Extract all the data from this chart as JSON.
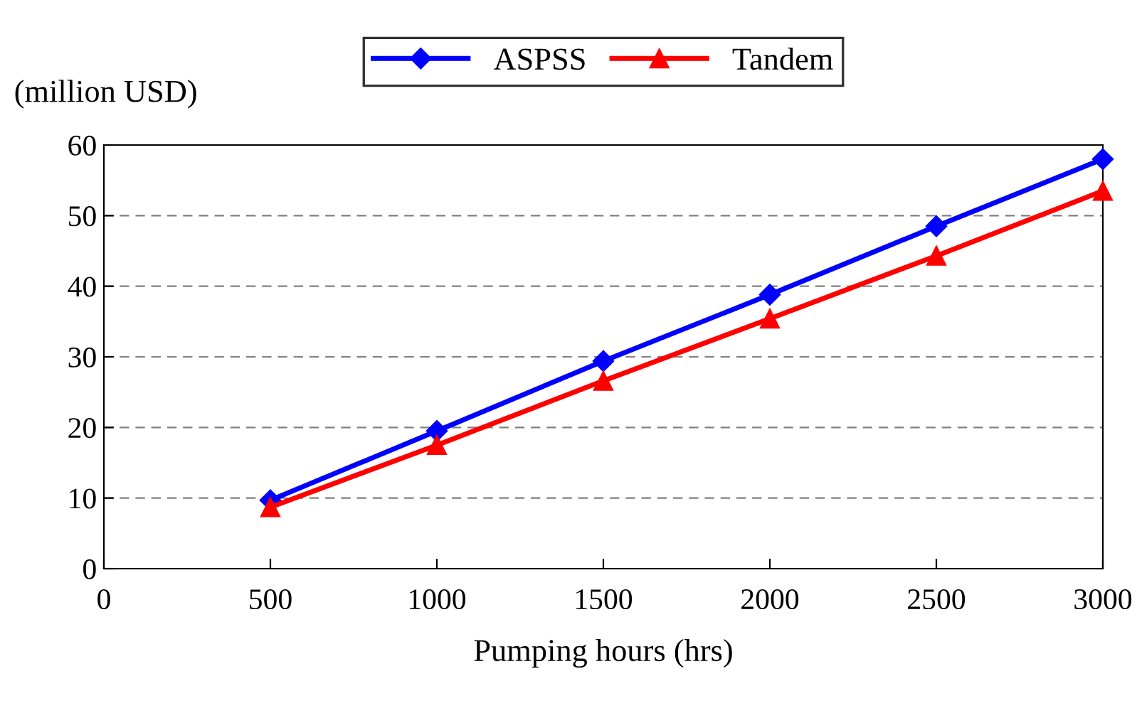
{
  "chart_data": {
    "type": "line",
    "xlabel": "Pumping hours (hrs)",
    "ylabel": "(million USD)",
    "x": [
      500,
      1000,
      1500,
      2000,
      2500,
      3000
    ],
    "series": [
      {
        "name": "ASPSS",
        "color": "#0000ff",
        "marker": "diamond",
        "values": [
          9.7,
          19.5,
          29.4,
          38.8,
          48.5,
          58.0
        ]
      },
      {
        "name": "Tandem",
        "color": "#ff0000",
        "marker": "triangle",
        "values": [
          8.7,
          17.5,
          26.6,
          35.4,
          44.3,
          53.5
        ]
      }
    ],
    "xlim": [
      0,
      3000
    ],
    "xticks": [
      0,
      500,
      1000,
      1500,
      2000,
      2500,
      3000
    ],
    "ylim": [
      0,
      60
    ],
    "yticks": [
      0,
      10,
      20,
      30,
      40,
      50,
      60
    ],
    "grid": "y",
    "legend": "top",
    "line_style": "solid"
  }
}
